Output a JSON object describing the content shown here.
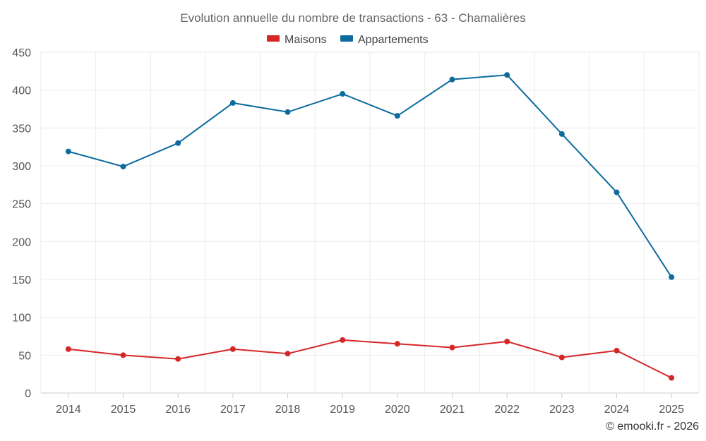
{
  "chart_data": {
    "type": "line",
    "title": "Evolution annuelle du nombre de transactions - 63 - Chamalières",
    "categories": [
      "2014",
      "2015",
      "2016",
      "2017",
      "2018",
      "2019",
      "2020",
      "2021",
      "2022",
      "2023",
      "2024",
      "2025"
    ],
    "series": [
      {
        "name": "Maisons",
        "color": "#d62728",
        "values": [
          58,
          50,
          45,
          58,
          52,
          70,
          65,
          60,
          68,
          47,
          56,
          20
        ]
      },
      {
        "name": "Appartements",
        "color": "#0d6b9e",
        "values": [
          319,
          299,
          330,
          383,
          371,
          395,
          366,
          414,
          420,
          342,
          265,
          153
        ]
      }
    ],
    "ylim": [
      0,
      450
    ],
    "yticks": [
      0,
      50,
      100,
      150,
      200,
      250,
      300,
      350,
      400,
      450
    ],
    "grid": true,
    "legend": "top-center"
  },
  "credit": "© emooki.fr - 2026"
}
